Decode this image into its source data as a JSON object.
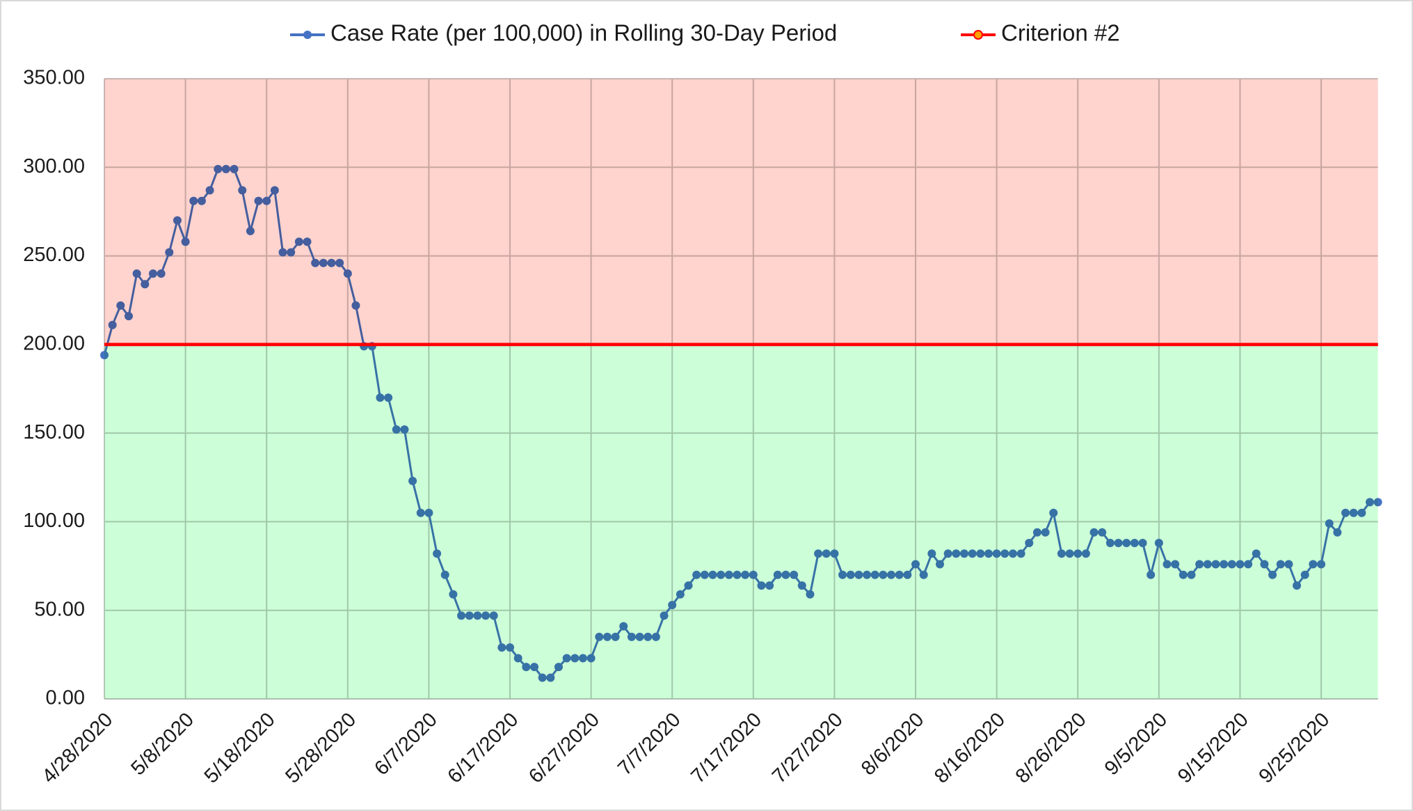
{
  "chart_data": {
    "type": "line",
    "categories": [
      "4/28/2020",
      null,
      null,
      null,
      null,
      null,
      null,
      null,
      null,
      null,
      "5/8/2020",
      null,
      null,
      null,
      null,
      null,
      null,
      null,
      null,
      null,
      "5/18/2020",
      null,
      null,
      null,
      null,
      null,
      null,
      null,
      null,
      null,
      "5/28/2020",
      null,
      null,
      null,
      null,
      null,
      null,
      null,
      null,
      null,
      "6/7/2020",
      null,
      null,
      null,
      null,
      null,
      null,
      null,
      null,
      null,
      "6/17/2020",
      null,
      null,
      null,
      null,
      null,
      null,
      null,
      null,
      null,
      "6/27/2020",
      null,
      null,
      null,
      null,
      null,
      null,
      null,
      null,
      null,
      "7/7/2020",
      null,
      null,
      null,
      null,
      null,
      null,
      null,
      null,
      null,
      "7/17/2020",
      null,
      null,
      null,
      null,
      null,
      null,
      null,
      null,
      null,
      "7/27/2020",
      null,
      null,
      null,
      null,
      null,
      null,
      null,
      null,
      null,
      "8/6/2020",
      null,
      null,
      null,
      null,
      null,
      null,
      null,
      null,
      null,
      "8/16/2020",
      null,
      null,
      null,
      null,
      null,
      null,
      null,
      null,
      null,
      "8/26/2020",
      null,
      null,
      null,
      null,
      null,
      null,
      null,
      null,
      null,
      "9/5/2020",
      null,
      null,
      null,
      null,
      null,
      null,
      null,
      null,
      null,
      "9/15/2020",
      null,
      null,
      null,
      null,
      null,
      null,
      null,
      null,
      null,
      "9/25/2020",
      null,
      null,
      null,
      null,
      null,
      null,
      null
    ],
    "series": [
      {
        "name": "Case Rate (per 100,000) in Rolling 30-Day Period",
        "color": "#4472c4",
        "markers": true,
        "values": [
          194,
          211,
          222,
          216,
          240,
          234,
          240,
          240,
          252,
          270,
          258,
          281,
          281,
          287,
          299,
          299,
          299,
          287,
          264,
          281,
          281,
          287,
          252,
          252,
          258,
          258,
          246,
          246,
          246,
          246,
          240,
          222,
          199,
          199,
          170,
          170,
          152,
          152,
          123,
          105,
          105,
          82,
          70,
          59,
          47,
          47,
          47,
          47,
          47,
          29,
          29,
          23,
          18,
          18,
          12,
          12,
          18,
          23,
          23,
          23,
          23,
          35,
          35,
          35,
          41,
          35,
          35,
          35,
          35,
          47,
          53,
          59,
          64,
          70,
          70,
          70,
          70,
          70,
          70,
          70,
          70,
          64,
          64,
          70,
          70,
          70,
          64,
          59,
          82,
          82,
          82,
          70,
          70,
          70,
          70,
          70,
          70,
          70,
          70,
          70,
          76,
          70,
          82,
          76,
          82,
          82,
          82,
          82,
          82,
          82,
          82,
          82,
          82,
          82,
          88,
          94,
          94,
          105,
          82,
          82,
          82,
          82,
          94,
          94,
          88,
          88,
          88,
          88,
          88,
          70,
          88,
          76,
          76,
          70,
          70,
          76,
          76,
          76,
          76,
          76,
          76,
          76,
          82,
          76,
          70,
          76,
          76,
          64,
          70,
          76,
          76,
          99,
          94,
          105,
          105,
          105,
          111,
          111
        ]
      },
      {
        "name": "Criterion #2",
        "color": "#ff0000",
        "markers": false,
        "values": [
          200,
          200,
          200,
          200,
          200,
          200,
          200,
          200,
          200,
          200,
          200,
          200,
          200,
          200,
          200,
          200,
          200,
          200,
          200,
          200,
          200,
          200,
          200,
          200,
          200,
          200,
          200,
          200,
          200,
          200,
          200,
          200,
          200,
          200,
          200,
          200,
          200,
          200,
          200,
          200,
          200,
          200,
          200,
          200,
          200,
          200,
          200,
          200,
          200,
          200,
          200,
          200,
          200,
          200,
          200,
          200,
          200,
          200,
          200,
          200,
          200,
          200,
          200,
          200,
          200,
          200,
          200,
          200,
          200,
          200,
          200,
          200,
          200,
          200,
          200,
          200,
          200,
          200,
          200,
          200,
          200,
          200,
          200,
          200,
          200,
          200,
          200,
          200,
          200,
          200,
          200,
          200,
          200,
          200,
          200,
          200,
          200,
          200,
          200,
          200,
          200,
          200,
          200,
          200,
          200,
          200,
          200,
          200,
          200,
          200,
          200,
          200,
          200,
          200,
          200,
          200,
          200,
          200,
          200,
          200,
          200,
          200,
          200,
          200,
          200,
          200,
          200,
          200,
          200,
          200,
          200,
          200,
          200,
          200,
          200,
          200,
          200,
          200,
          200,
          200,
          200,
          200,
          200,
          200,
          200,
          200,
          200,
          200,
          200,
          200,
          200,
          200,
          200,
          200,
          200,
          200,
          200,
          200
        ]
      }
    ],
    "bands": [
      {
        "from": 200,
        "to": 350,
        "color": "#ffd3ce"
      },
      {
        "from": 0,
        "to": 200,
        "color": "#ccffd8"
      }
    ],
    "ylim": [
      0,
      350
    ],
    "yticks": [
      {
        "value": 0,
        "label": "0.00"
      },
      {
        "value": 50,
        "label": "50.00"
      },
      {
        "value": 100,
        "label": "100.00"
      },
      {
        "value": 150,
        "label": "150.00"
      },
      {
        "value": 200,
        "label": "200.00"
      },
      {
        "value": 250,
        "label": "250.00"
      },
      {
        "value": 300,
        "label": "300.00"
      },
      {
        "value": 350,
        "label": "350.00"
      }
    ],
    "grid": true,
    "legend": "top"
  }
}
